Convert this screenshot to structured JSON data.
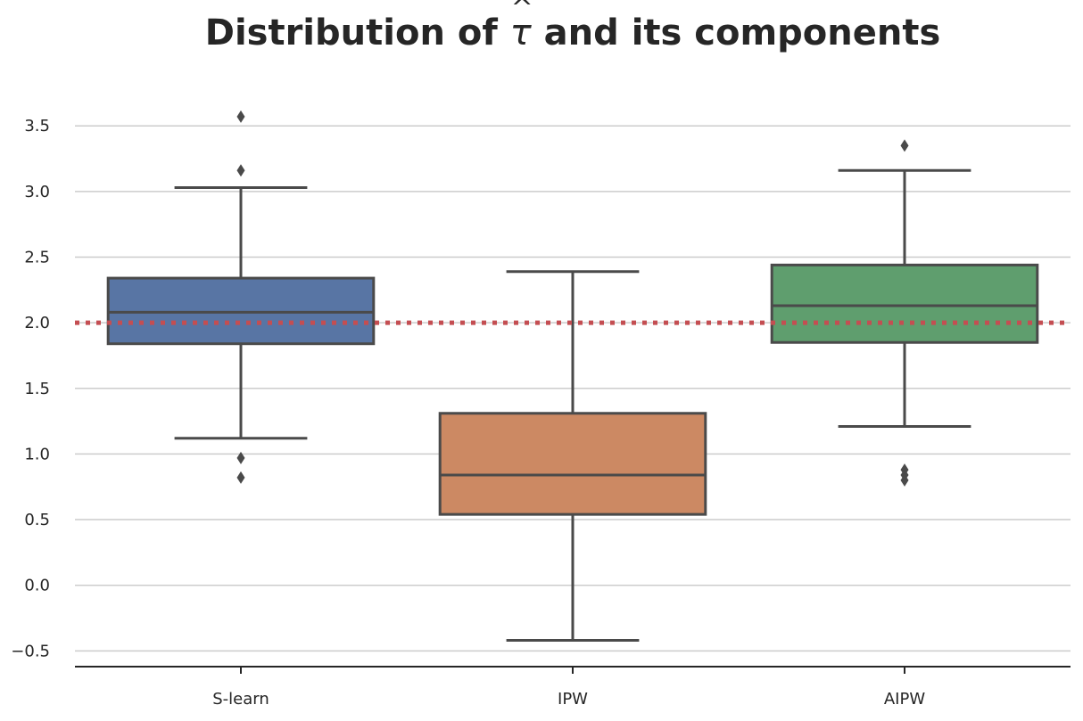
{
  "chart_data": {
    "type": "box",
    "title_prefix": "Distribution of ",
    "title_symbol": "τ",
    "title_accent": "^",
    "title_suffix": " and its components",
    "xlabel": "",
    "ylabel": "",
    "ylim": [
      -0.62,
      3.78
    ],
    "yticks": [
      -0.5,
      0.0,
      0.5,
      1.0,
      1.5,
      2.0,
      2.5,
      3.0,
      3.5
    ],
    "ytick_labels": [
      "−0.5",
      "0.0",
      "0.5",
      "1.0",
      "1.5",
      "2.0",
      "2.5",
      "3.0",
      "3.5"
    ],
    "grid": true,
    "reference_line": {
      "y": 2.0,
      "style": "dotted",
      "color": "#c44e52"
    },
    "categories": [
      "S-learn",
      "IPW",
      "AIPW"
    ],
    "boxes": [
      {
        "label": "S-learn",
        "color": "#5875a4",
        "whisker_low": 1.12,
        "q1": 1.84,
        "median": 2.08,
        "q3": 2.34,
        "whisker_high": 3.03,
        "outliers": [
          3.57,
          3.16,
          0.97,
          0.82
        ]
      },
      {
        "label": "IPW",
        "color": "#cc8963",
        "whisker_low": -0.42,
        "q1": 0.54,
        "median": 0.84,
        "q3": 1.31,
        "whisker_high": 2.39,
        "outliers": []
      },
      {
        "label": "AIPW",
        "color": "#5f9e6e",
        "whisker_low": 1.21,
        "q1": 1.85,
        "median": 2.13,
        "q3": 2.44,
        "whisker_high": 3.16,
        "outliers": [
          3.35,
          0.88,
          0.84,
          0.8
        ]
      }
    ]
  }
}
